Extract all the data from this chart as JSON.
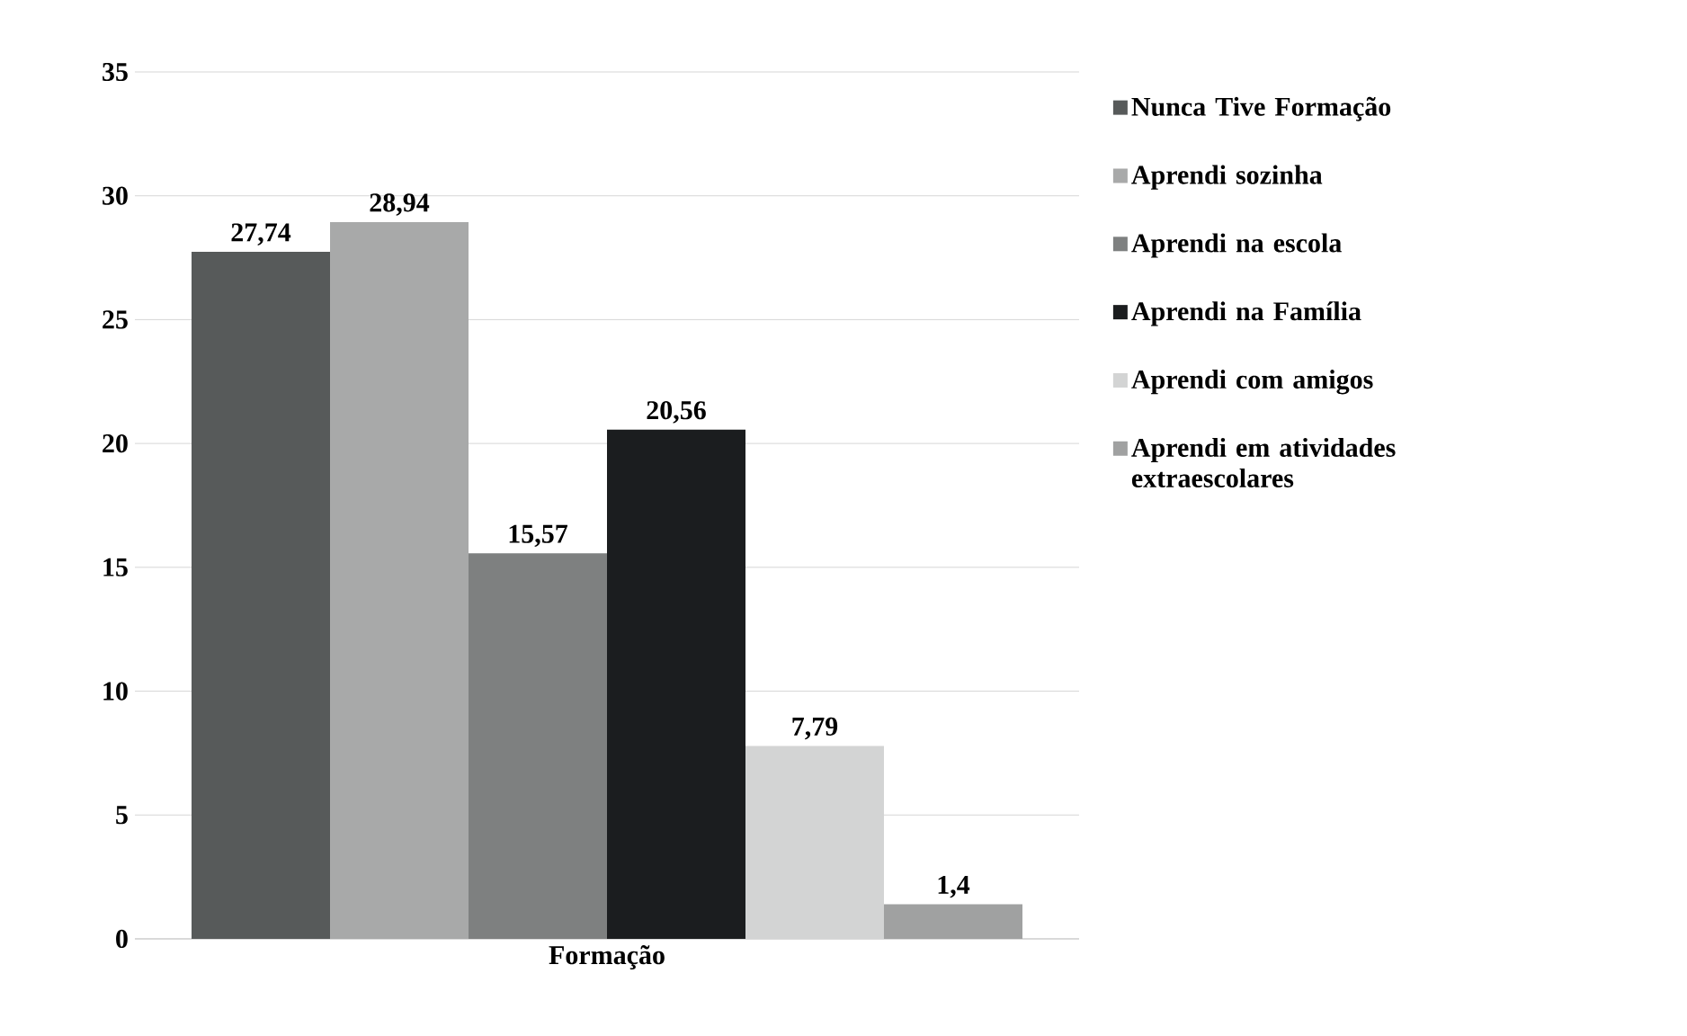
{
  "chart_data": {
    "type": "bar",
    "categories": [
      "Formação"
    ],
    "series": [
      {
        "name": "Nunca Tive Formação",
        "color": "#575a5a",
        "values": [
          27.74
        ],
        "value_labels": [
          "27,74"
        ]
      },
      {
        "name": "Aprendi sozinha",
        "color": "#a8a9a9",
        "values": [
          28.94
        ],
        "value_labels": [
          "28,94"
        ]
      },
      {
        "name": "Aprendi na escola",
        "color": "#7e8080",
        "values": [
          15.57
        ],
        "value_labels": [
          "15,57"
        ]
      },
      {
        "name": "Aprendi na Família",
        "color": "#1b1d1f",
        "values": [
          20.56
        ],
        "value_labels": [
          "20,56"
        ]
      },
      {
        "name": "Aprendi com amigos",
        "color": "#d3d4d4",
        "values": [
          7.79
        ],
        "value_labels": [
          "7,79"
        ]
      },
      {
        "name": "Aprendi em atividades extraescolares",
        "color": "#a0a1a1",
        "values": [
          1.4
        ],
        "value_labels": [
          "1,4"
        ]
      }
    ],
    "ylim": [
      0,
      35
    ],
    "yticks": [
      0,
      5,
      10,
      15,
      20,
      25,
      30,
      35
    ],
    "grid": "y",
    "legend": "right"
  }
}
